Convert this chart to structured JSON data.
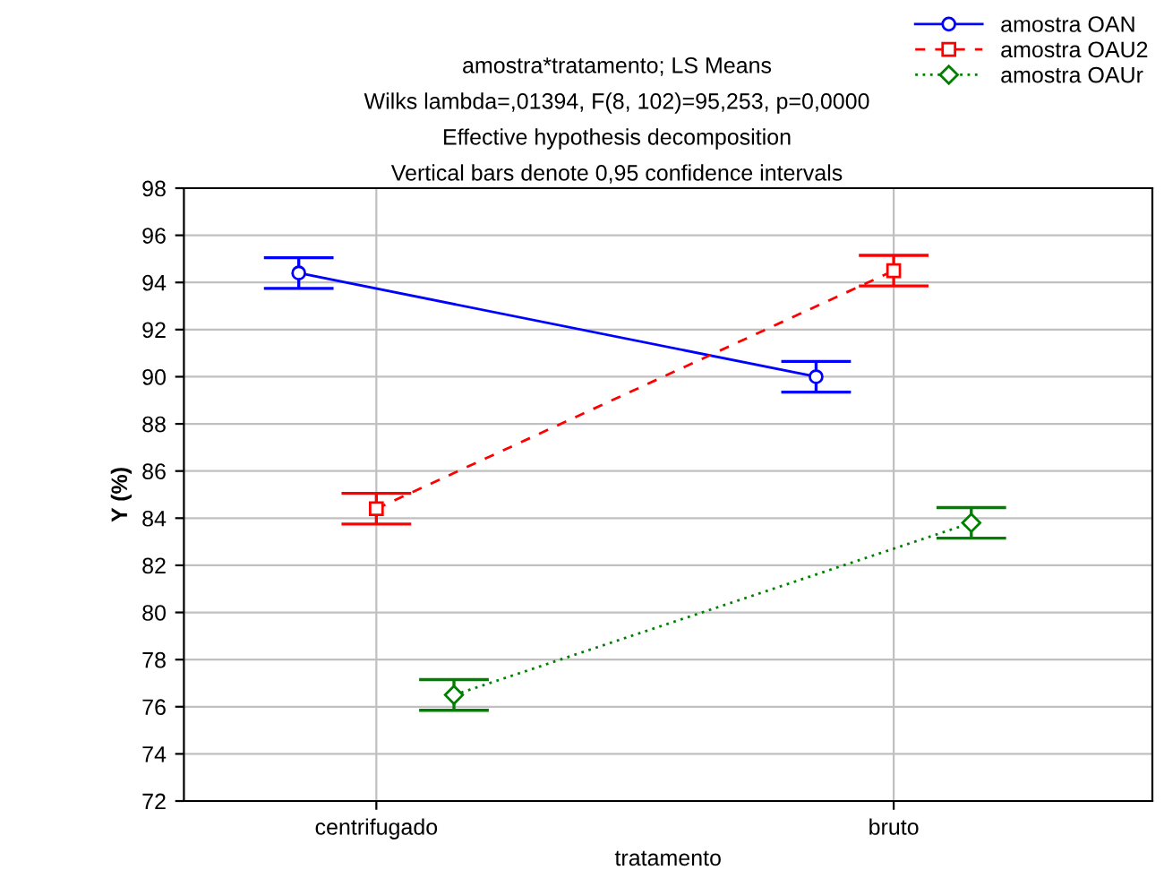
{
  "chart_data": {
    "type": "line",
    "title": "amostra*tratamento; LS Means",
    "subtitle": "Wilks lambda=,01394, F(8, 102)=95,253, p=0,0000",
    "annotations": [
      "Effective hypothesis decomposition",
      "Vertical bars denote 0,95 confidence intervals"
    ],
    "xlabel": "tratamento",
    "ylabel": "Y (%)",
    "categories": [
      "centrifugado",
      "bruto"
    ],
    "series": [
      {
        "name": "amostra OAN",
        "color": "#0000ff",
        "values": [
          94.4,
          90.0
        ],
        "errors": [
          0.65,
          0.65
        ],
        "marker": "circle",
        "line_style": "solid"
      },
      {
        "name": "amostra OAU2",
        "color": "#ff0000",
        "values": [
          84.4,
          94.5
        ],
        "errors": [
          0.65,
          0.65
        ],
        "marker": "square",
        "line_style": "dashed"
      },
      {
        "name": "amostra OAUr",
        "color": "#008000",
        "values": [
          76.5,
          83.8
        ],
        "errors": [
          0.65,
          0.65
        ],
        "marker": "diamond",
        "line_style": "dotted"
      }
    ],
    "ylim": [
      72,
      98
    ],
    "yticks": [
      72,
      74,
      76,
      78,
      80,
      82,
      84,
      86,
      88,
      90,
      92,
      94,
      96,
      98
    ],
    "grid": true,
    "legend": "top right"
  }
}
